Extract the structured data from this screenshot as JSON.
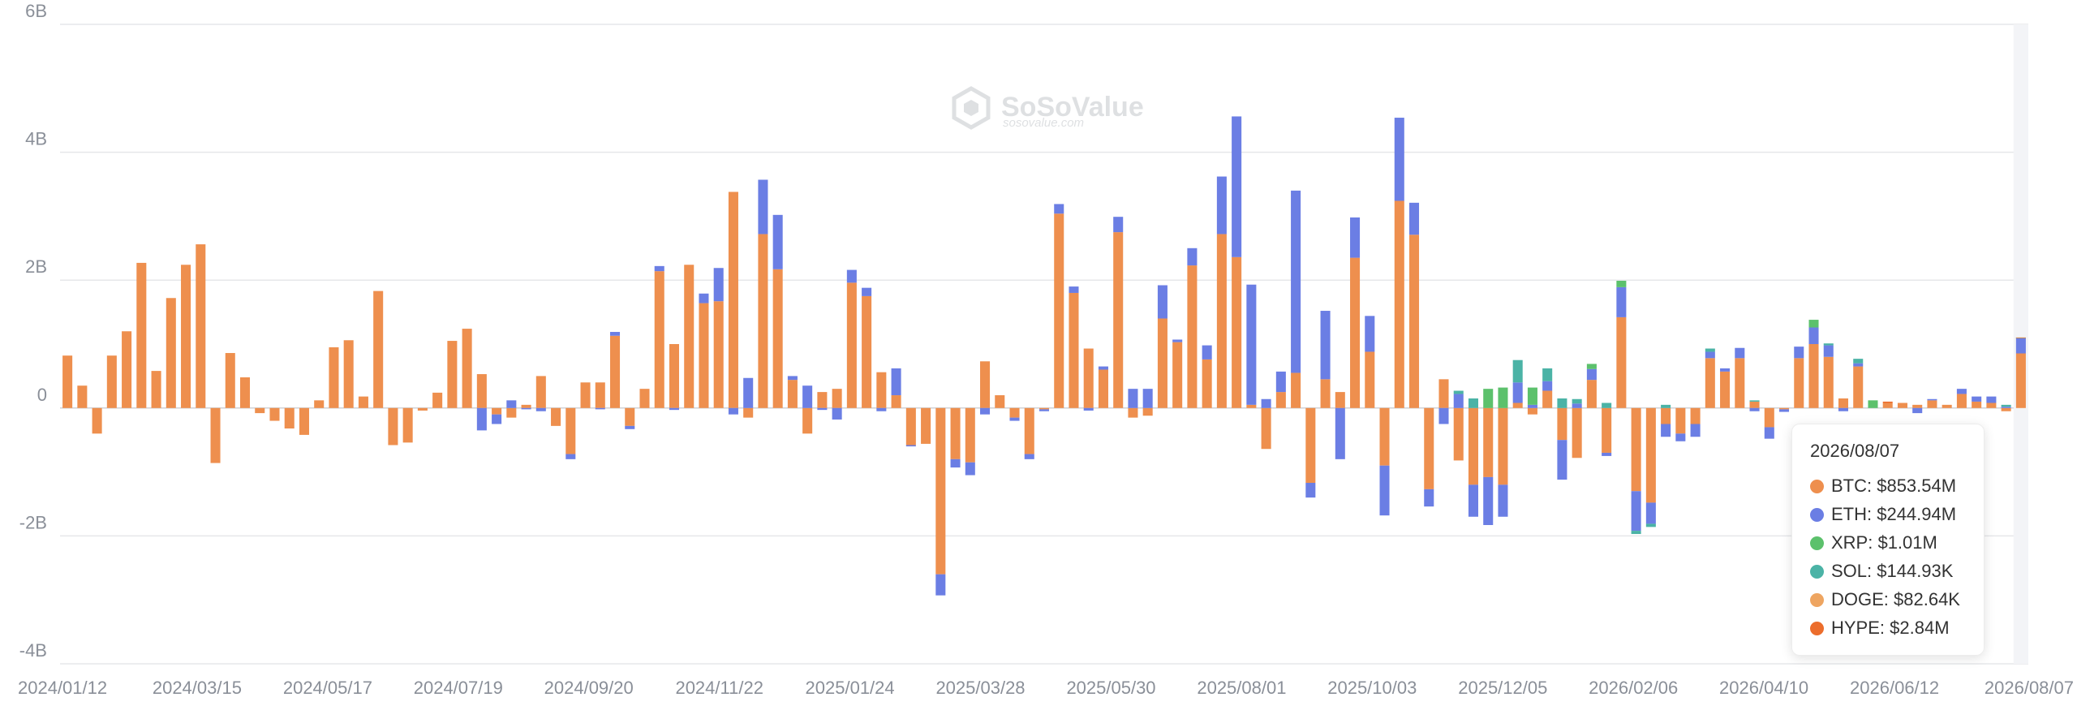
{
  "watermark": {
    "brand": "SoSoValue",
    "site": "sosovalue.com"
  },
  "tooltip": {
    "date": "2026/08/07",
    "rows": [
      {
        "label": "BTC: $853.54M",
        "color": "#ee8f4e"
      },
      {
        "label": "ETH: $244.94M",
        "color": "#6b7ee4"
      },
      {
        "label": "XRP: $1.01M",
        "color": "#5cc16c"
      },
      {
        "label": "SOL: $144.93K",
        "color": "#4bb3a6"
      },
      {
        "label": "DOGE: $82.64K",
        "color": "#eea561"
      },
      {
        "label": "HYPE: $2.84M",
        "color": "#ec6d2c"
      }
    ]
  },
  "chart_data": {
    "type": "bar",
    "stacked": true,
    "grid": true,
    "ylim": [
      -4,
      6
    ],
    "yticks": [
      {
        "value": 6,
        "label": "6B"
      },
      {
        "value": 4,
        "label": "4B"
      },
      {
        "value": 2,
        "label": "2B"
      },
      {
        "value": 0,
        "label": "0"
      },
      {
        "value": -2,
        "label": "-2B"
      },
      {
        "value": -4,
        "label": "-4B"
      }
    ],
    "xtick_labels": [
      "2024/01/12",
      "2024/03/15",
      "2024/05/17",
      "2024/07/19",
      "2024/09/20",
      "2024/11/22",
      "2025/01/24",
      "2025/03/28",
      "2025/05/30",
      "2025/08/01",
      "2025/10/03",
      "2025/12/05",
      "2026/02/06",
      "2026/04/10",
      "2026/06/12",
      "2026/08/07"
    ],
    "series_colors": {
      "BTC": "#ee8f4e",
      "ETH": "#6b7ee4",
      "XRP": "#5cc16c",
      "SOL": "#4bb3a6",
      "DOGE": "#eea561",
      "HYPE": "#ec6d2c"
    },
    "series_order": [
      "BTC",
      "ETH",
      "XRP",
      "SOL",
      "DOGE",
      "HYPE"
    ],
    "highlight_last": true,
    "weeks": [
      {
        "BTC": 0.82
      },
      {
        "BTC": 0.35
      },
      {
        "BTC": -0.4
      },
      {
        "BTC": 0.82
      },
      {
        "BTC": 1.2
      },
      {
        "BTC": 2.27
      },
      {
        "BTC": 0.58
      },
      {
        "BTC": 1.72
      },
      {
        "BTC": 2.24
      },
      {
        "BTC": 2.56
      },
      {
        "BTC": -0.86
      },
      {
        "BTC": 0.86
      },
      {
        "BTC": 0.48
      },
      {
        "BTC": -0.08
      },
      {
        "BTC": -0.2
      },
      {
        "BTC": -0.32
      },
      {
        "BTC": -0.42
      },
      {
        "BTC": 0.12
      },
      {
        "BTC": 0.95
      },
      {
        "BTC": 1.06
      },
      {
        "BTC": 0.18
      },
      {
        "BTC": 1.83
      },
      {
        "BTC": -0.58
      },
      {
        "BTC": -0.54
      },
      {
        "BTC": -0.04
      },
      {
        "BTC": 0.24
      },
      {
        "BTC": 1.05
      },
      {
        "BTC": 1.24
      },
      {
        "BTC": 0.53,
        "ETH": -0.35
      },
      {
        "BTC": -0.1,
        "ETH": -0.15
      },
      {
        "BTC": -0.15,
        "ETH": 0.12
      },
      {
        "BTC": 0.05,
        "ETH": -0.02
      },
      {
        "BTC": 0.5,
        "ETH": -0.05
      },
      {
        "BTC": -0.28
      },
      {
        "BTC": -0.72,
        "ETH": -0.08
      },
      {
        "BTC": 0.4
      },
      {
        "BTC": 0.4,
        "ETH": -0.02
      },
      {
        "BTC": 1.13,
        "ETH": 0.06
      },
      {
        "BTC": -0.28,
        "ETH": -0.05
      },
      {
        "BTC": 0.3
      },
      {
        "BTC": 2.14,
        "ETH": 0.08
      },
      {
        "BTC": 1.0,
        "ETH": -0.03
      },
      {
        "BTC": 2.24
      },
      {
        "BTC": 1.64,
        "ETH": 0.15
      },
      {
        "BTC": 1.67,
        "ETH": 0.52
      },
      {
        "BTC": 3.38,
        "ETH": -0.1
      },
      {
        "BTC": -0.15,
        "ETH": 0.47
      },
      {
        "BTC": 2.72,
        "ETH": 0.85
      },
      {
        "BTC": 2.17,
        "ETH": 0.85
      },
      {
        "BTC": 0.44,
        "ETH": 0.06
      },
      {
        "BTC": -0.4,
        "ETH": 0.35
      },
      {
        "BTC": 0.25,
        "ETH": -0.03
      },
      {
        "BTC": 0.3,
        "ETH": -0.18
      },
      {
        "BTC": 1.96,
        "ETH": 0.2
      },
      {
        "BTC": 1.75,
        "ETH": 0.13
      },
      {
        "BTC": 0.56,
        "ETH": -0.05
      },
      {
        "BTC": 0.2,
        "ETH": 0.42
      },
      {
        "BTC": -0.58,
        "ETH": -0.02
      },
      {
        "BTC": -0.56
      },
      {
        "BTC": -2.6,
        "ETH": -0.33
      },
      {
        "BTC": -0.8,
        "ETH": -0.13
      },
      {
        "BTC": -0.85,
        "ETH": -0.2
      },
      {
        "BTC": 0.73,
        "ETH": -0.1
      },
      {
        "BTC": 0.2
      },
      {
        "BTC": -0.15,
        "ETH": -0.05
      },
      {
        "BTC": -0.72,
        "ETH": -0.08
      },
      {
        "BTC": -0.02,
        "ETH": -0.03
      },
      {
        "BTC": 3.04,
        "ETH": 0.15
      },
      {
        "BTC": 1.8,
        "ETH": 0.1
      },
      {
        "BTC": 0.93,
        "ETH": -0.04
      },
      {
        "BTC": 0.6,
        "ETH": 0.05
      },
      {
        "BTC": 2.75,
        "ETH": 0.24
      },
      {
        "BTC": -0.15,
        "ETH": 0.3
      },
      {
        "BTC": -0.12,
        "ETH": 0.3
      },
      {
        "BTC": 1.4,
        "ETH": 0.52
      },
      {
        "BTC": 1.03,
        "ETH": 0.04
      },
      {
        "BTC": 2.23,
        "ETH": 0.27
      },
      {
        "BTC": 0.76,
        "ETH": 0.22
      },
      {
        "BTC": 2.72,
        "ETH": 0.9
      },
      {
        "BTC": 2.36,
        "ETH": 2.2
      },
      {
        "BTC": 0.05,
        "ETH": 1.88
      },
      {
        "BTC": -0.64,
        "ETH": 0.14
      },
      {
        "BTC": 0.25,
        "ETH": 0.32
      },
      {
        "BTC": 0.55,
        "ETH": 2.85
      },
      {
        "BTC": -1.17,
        "ETH": -0.23
      },
      {
        "BTC": 0.45,
        "ETH": 1.07
      },
      {
        "BTC": 0.25,
        "ETH": -0.8
      },
      {
        "BTC": 2.35,
        "ETH": 0.63
      },
      {
        "BTC": 0.88,
        "ETH": 0.56
      },
      {
        "BTC": -0.9,
        "ETH": -0.78
      },
      {
        "BTC": 3.24,
        "ETH": 1.3
      },
      {
        "BTC": 2.71,
        "ETH": 0.5
      },
      {
        "BTC": -1.27,
        "ETH": -0.27
      },
      {
        "BTC": 0.45,
        "ETH": -0.25
      },
      {
        "BTC": -0.82,
        "ETH": 0.22,
        "SOL": 0.05
      },
      {
        "BTC": -1.2,
        "ETH": -0.5,
        "SOL": 0.15
      },
      {
        "BTC": -1.08,
        "ETH": -0.75,
        "XRP": 0.3
      },
      {
        "BTC": -1.2,
        "ETH": -0.5,
        "XRP": 0.32
      },
      {
        "BTC": 0.08,
        "ETH": 0.32,
        "SOL": 0.35
      },
      {
        "BTC": -0.1,
        "ETH": 0.05,
        "XRP": 0.27
      },
      {
        "BTC": 0.27,
        "ETH": 0.15,
        "SOL": 0.2
      },
      {
        "BTC": -0.5,
        "ETH": -0.62,
        "SOL": 0.15
      },
      {
        "BTC": -0.78,
        "ETH": 0.07,
        "SOL": 0.07
      },
      {
        "BTC": 0.44,
        "ETH": 0.17,
        "XRP": 0.08
      },
      {
        "BTC": -0.7,
        "ETH": -0.05,
        "SOL": 0.08
      },
      {
        "BTC": 1.42,
        "ETH": 0.47,
        "XRP": 0.1
      },
      {
        "BTC": -1.3,
        "ETH": -0.62,
        "SOL": -0.05
      },
      {
        "BTC": -1.48,
        "ETH": -0.33,
        "SOL": -0.05
      },
      {
        "BTC": -0.25,
        "ETH": -0.2,
        "SOL": 0.05
      },
      {
        "BTC": -0.4,
        "ETH": -0.12
      },
      {
        "BTC": -0.25,
        "ETH": -0.2
      },
      {
        "BTC": 0.78,
        "ETH": 0.1,
        "SOL": 0.05
      },
      {
        "BTC": 0.57,
        "ETH": 0.05
      },
      {
        "BTC": 0.78,
        "ETH": 0.16
      },
      {
        "BTC": 0.1,
        "ETH": -0.05,
        "SOL": 0.02
      },
      {
        "BTC": -0.3,
        "ETH": -0.18
      },
      {
        "BTC": -0.02,
        "ETH": -0.04
      },
      {
        "BTC": 0.78,
        "ETH": 0.18
      },
      {
        "BTC": 1.0,
        "ETH": 0.26,
        "XRP": 0.12
      },
      {
        "BTC": 0.8,
        "ETH": 0.18,
        "SOL": 0.03
      },
      {
        "BTC": 0.15,
        "ETH": -0.05
      },
      {
        "BTC": 0.65,
        "ETH": 0.05,
        "SOL": 0.07
      },
      {
        "BTC": 0.0,
        "XRP": 0.12
      },
      {
        "BTC": 0.08,
        "HYPE": 0.02
      },
      {
        "BTC": 0.08
      },
      {
        "BTC": 0.05,
        "ETH": -0.08
      },
      {
        "BTC": 0.12,
        "ETH": 0.02
      },
      {
        "BTC": 0.05
      },
      {
        "BTC": 0.22,
        "ETH": 0.08
      },
      {
        "BTC": 0.1,
        "ETH": 0.08
      },
      {
        "BTC": 0.08,
        "ETH": 0.1
      },
      {
        "BTC": -0.05,
        "ETH": 0.02,
        "SOL": 0.03
      },
      {
        "BTC": 0.854,
        "ETH": 0.245,
        "XRP": 0.001,
        "SOL": 0.0001,
        "DOGE": 0.0001,
        "HYPE": 0.003
      }
    ]
  }
}
